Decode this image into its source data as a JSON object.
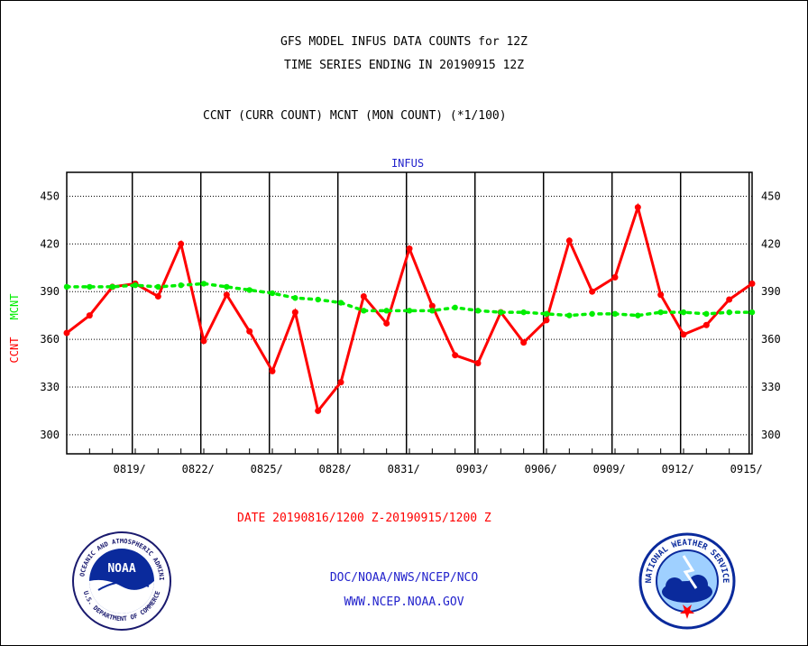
{
  "header": {
    "title_line1": "GFS MODEL INFUS DATA COUNTS for 12Z",
    "title_line2": "TIME SERIES ENDING IN 20190915 12Z",
    "subtitle": "CCNT (CURR COUNT) MCNT (MON COUNT) (*1/100)"
  },
  "footer": {
    "date_range": "DATE 20190816/1200 Z-20190915/1200 Z",
    "org": "DOC/NOAA/NWS/NCEP/NCO",
    "url": "WWW.NCEP.NOAA.GOV"
  },
  "logos": {
    "noaa_text": "NOAA",
    "noaa_ring_top": "NATIONAL OCEANIC AND ATMOSPHERIC ADMINISTRATION",
    "noaa_ring_bottom": "U.S. DEPARTMENT OF COMMERCE",
    "nws_ring_top": "NATIONAL WEATHER SERVICE"
  },
  "colors": {
    "ccnt": "#ff0000",
    "mcnt": "#00ee00",
    "panel_label": "#2222cc",
    "footer_blue": "#2222cc",
    "footer_red": "#ff0000"
  },
  "chart_data": {
    "type": "line",
    "panel_label": "INFUS",
    "ylabel_series": [
      "CCNT",
      "MCNT"
    ],
    "ylim": [
      288,
      465
    ],
    "yticks": [
      300,
      330,
      360,
      390,
      420,
      450
    ],
    "x_tick_labels": [
      "0819/",
      "0822/",
      "0825/",
      "0828/",
      "0831/",
      "0903/",
      "0906/",
      "0909/",
      "0912/",
      "0915/"
    ],
    "x_tick_day_index": [
      3,
      6,
      9,
      12,
      15,
      18,
      21,
      24,
      27,
      30
    ],
    "x_days": 31,
    "grid": true,
    "series": [
      {
        "name": "CCNT",
        "color": "#ff0000",
        "style": "solid",
        "values": [
          364,
          375,
          393,
          395,
          387,
          420,
          359,
          388,
          365,
          340,
          377,
          315,
          333,
          387,
          370,
          417,
          381,
          350,
          345,
          377,
          358,
          372,
          422,
          390,
          399,
          443,
          388,
          363,
          369,
          385,
          395
        ]
      },
      {
        "name": "MCNT",
        "color": "#00ee00",
        "style": "dotted",
        "values": [
          393,
          393,
          393,
          394,
          393,
          394,
          395,
          393,
          391,
          389,
          386,
          385,
          383,
          378,
          378,
          378,
          378,
          380,
          378,
          377,
          377,
          376,
          375,
          376,
          376,
          375,
          377,
          377,
          376,
          377,
          377
        ]
      }
    ]
  }
}
